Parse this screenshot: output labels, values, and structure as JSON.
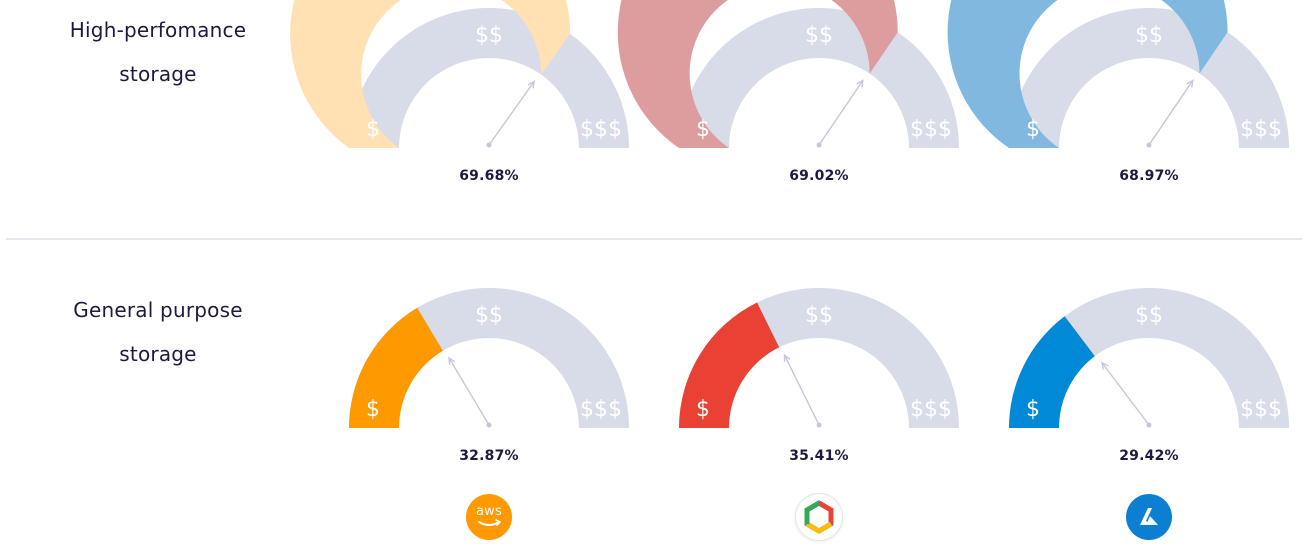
{
  "rows": [
    {
      "label_line1": "High-perfomance",
      "label_line2": "storage"
    },
    {
      "label_line1": "General purpose",
      "label_line2": "storage"
    }
  ],
  "tiers": {
    "low": "$",
    "mid": "$$",
    "high": "$$$"
  },
  "colors": {
    "track": "#d8dbe8",
    "needle": "#c5c8da",
    "hp_aws": "#ffe1b4",
    "hp_gcp": "#dd9d9e",
    "hp_azure": "#81b8e0",
    "gp_aws": "#ff9900",
    "gp_gcp": "#e94235",
    "gp_azure": "#0089d6"
  },
  "providers": [
    {
      "id": "aws",
      "logo_text": "aws",
      "icon": "aws-logo-icon"
    },
    {
      "id": "gcp",
      "icon": "google-cloud-logo-icon"
    },
    {
      "id": "azure",
      "icon": "azure-logo-icon"
    }
  ],
  "chart_data": [
    {
      "type": "gauge",
      "row": "High-perfomance storage",
      "provider": "aws",
      "value": 69.68,
      "value_label": "69.68%",
      "range": [
        0,
        100
      ]
    },
    {
      "type": "gauge",
      "row": "High-perfomance storage",
      "provider": "gcp",
      "value": 69.02,
      "value_label": "69.02%",
      "range": [
        0,
        100
      ]
    },
    {
      "type": "gauge",
      "row": "High-perfomance storage",
      "provider": "azure",
      "value": 68.97,
      "value_label": "68.97%",
      "range": [
        0,
        100
      ]
    },
    {
      "type": "gauge",
      "row": "General purpose storage",
      "provider": "aws",
      "value": 32.87,
      "value_label": "32.87%",
      "range": [
        0,
        100
      ]
    },
    {
      "type": "gauge",
      "row": "General purpose storage",
      "provider": "gcp",
      "value": 35.41,
      "value_label": "35.41%",
      "range": [
        0,
        100
      ]
    },
    {
      "type": "gauge",
      "row": "General purpose storage",
      "provider": "azure",
      "value": 29.42,
      "value_label": "29.42%",
      "range": [
        0,
        100
      ]
    }
  ]
}
